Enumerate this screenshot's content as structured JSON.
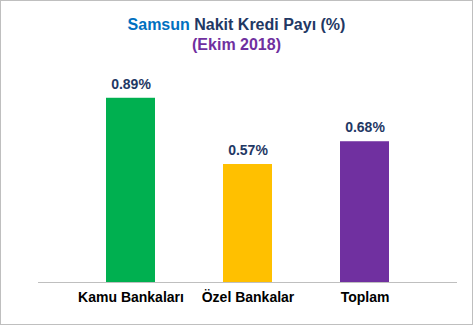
{
  "chart_data": {
    "type": "bar",
    "title": "Samsun Nakit Kredi Payı (%)",
    "subtitle": "(Ekim 2018)",
    "categories": [
      "Kamu Bankaları",
      "Özel Bankalar",
      "Toplam"
    ],
    "values": [
      0.89,
      0.57,
      0.68
    ],
    "value_labels": [
      "0.89%",
      "0.57%",
      "0.68%"
    ],
    "colors": [
      "#00b050",
      "#ffc000",
      "#7030a0"
    ],
    "ylim": [
      0,
      1
    ],
    "tick_labels": "x",
    "data_labels": true,
    "grid": false
  }
}
